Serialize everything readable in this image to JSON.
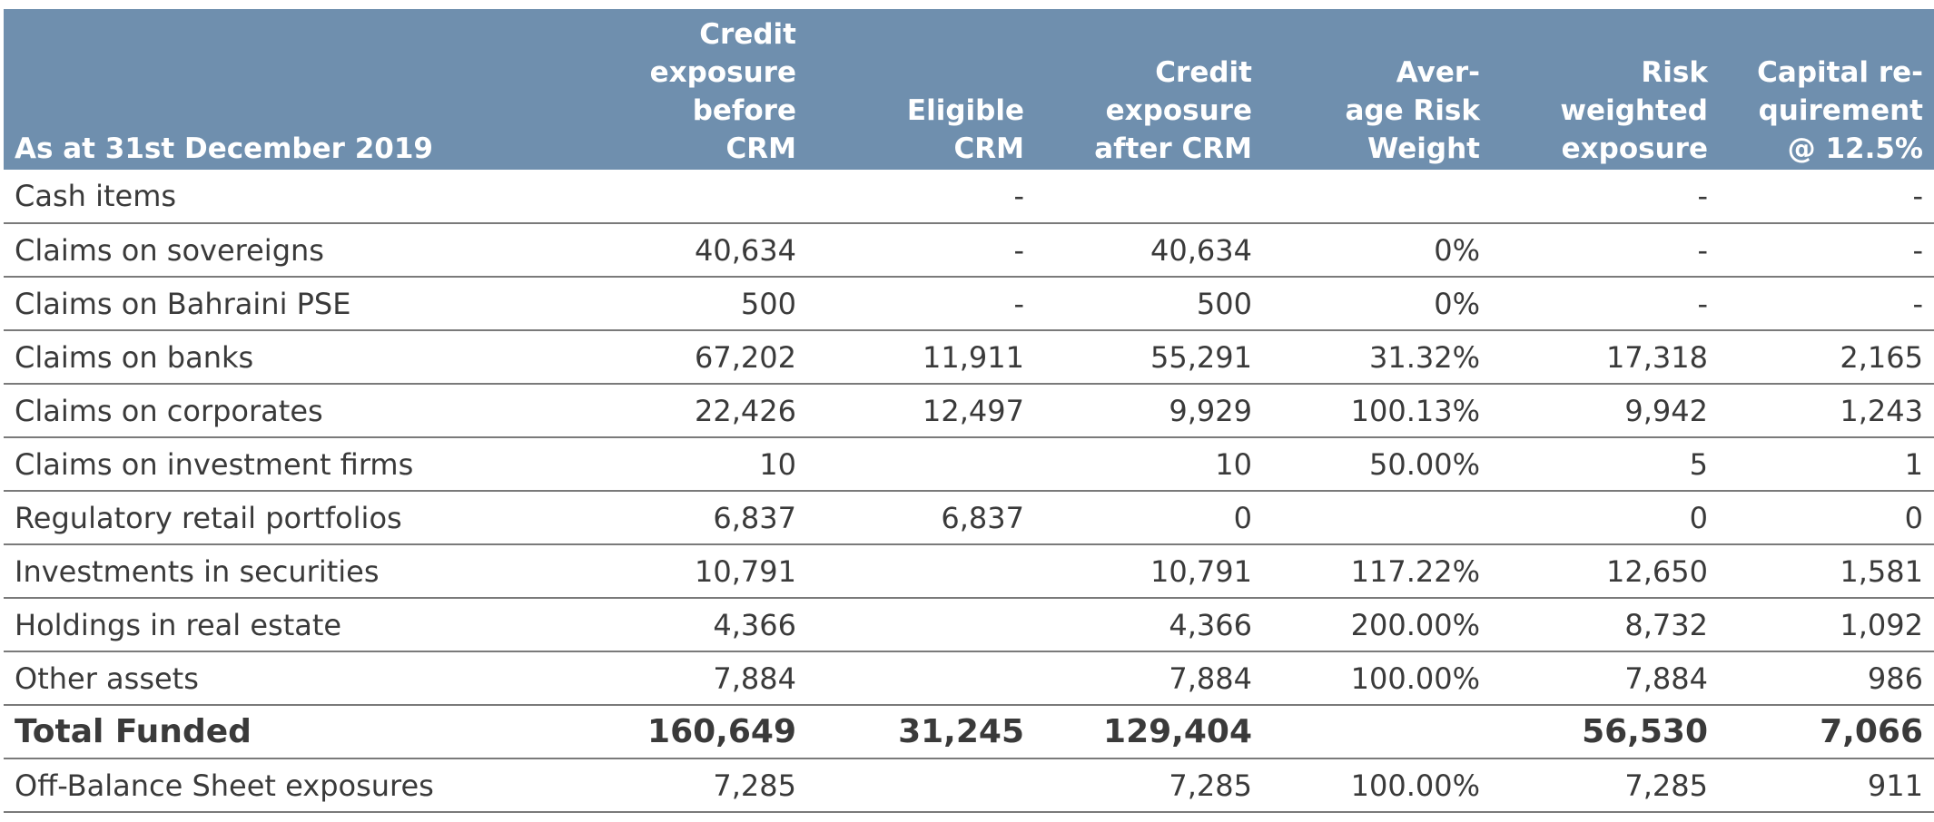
{
  "table": {
    "columns": [
      [
        "As at 31st December 2019"
      ],
      [
        "Credit",
        "exposure",
        "before",
        "CRM"
      ],
      [
        "Eligible",
        "CRM"
      ],
      [
        "Credit",
        "exposure",
        "after CRM"
      ],
      [
        "Aver-",
        "age Risk",
        "Weight"
      ],
      [
        "Risk",
        "weighted",
        "exposure"
      ],
      [
        "Capital re-",
        "quirement",
        "@ 12.5%"
      ]
    ],
    "rows": [
      [
        "Cash items",
        "",
        "-",
        "",
        "",
        "-",
        "-"
      ],
      [
        "Claims on sovereigns",
        "40,634",
        "-",
        "40,634",
        "0%",
        "-",
        "-"
      ],
      [
        "Claims on Bahraini PSE",
        "500",
        "-",
        "500",
        "0%",
        "-",
        "-"
      ],
      [
        "Claims on banks",
        "67,202",
        "11,911",
        "55,291",
        "31.32%",
        "17,318",
        "2,165"
      ],
      [
        "Claims on corporates",
        "22,426",
        "12,497",
        "9,929",
        "100.13%",
        "9,942",
        "1,243"
      ],
      [
        "Claims on investment firms",
        "10",
        "",
        "10",
        "50.00%",
        "5",
        "1"
      ],
      [
        "Regulatory retail portfolios",
        "6,837",
        "6,837",
        "0",
        "",
        "0",
        "0"
      ],
      [
        "Investments in securities",
        "10,791",
        "",
        "10,791",
        "117.22%",
        "12,650",
        "1,581"
      ],
      [
        "Holdings in real estate",
        "4,366",
        "",
        "4,366",
        "200.00%",
        "8,732",
        "1,092"
      ],
      [
        "Other assets",
        "7,884",
        "",
        "7,884",
        "100.00%",
        "7,884",
        "986"
      ],
      [
        "Total Funded",
        "160,649",
        "31,245",
        "129,404",
        "",
        "56,530",
        "7,066"
      ],
      [
        "Off-Balance Sheet exposures",
        "7,285",
        "",
        "7,285",
        "100.00%",
        "7,285",
        "911"
      ]
    ],
    "total_row_index": 10
  },
  "colors": {
    "header_background": "#6f8fae",
    "header_text": "#ffffff",
    "body_text": "#3a3a3a",
    "row_rule": "#7a7a7a"
  }
}
